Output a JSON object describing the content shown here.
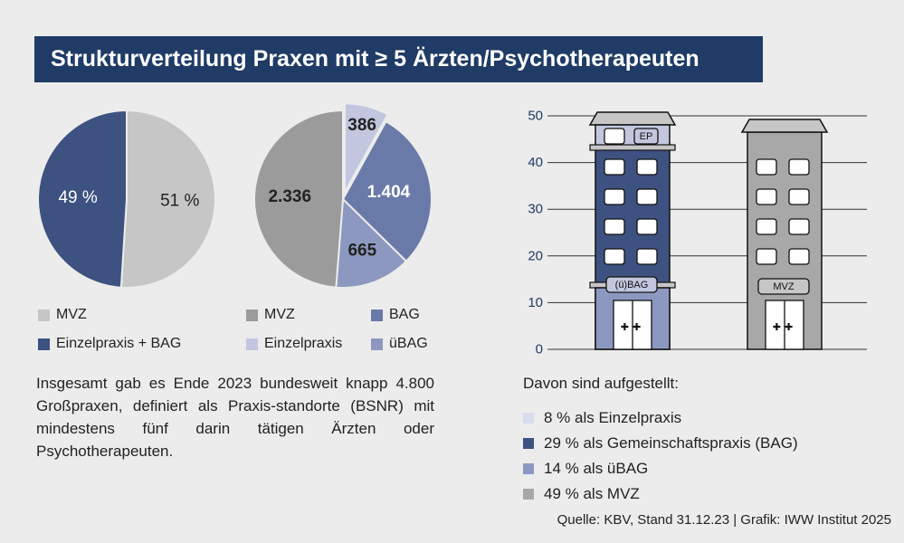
{
  "title": "Strukturverteilung Praxen mit ≥ 5 Ärzten/Psychotherapeuten",
  "colors": {
    "dark_blue": "#3d5280",
    "mid_blue": "#6a7aa8",
    "light_blue": "#8d98c1",
    "pale_blue": "#c2c7df",
    "light_gray": "#c6c6c6",
    "mid_gray": "#9b9b9b",
    "title_bg": "#1f3b66"
  },
  "chart_data": [
    {
      "type": "pie",
      "slices": [
        {
          "label": "MVZ",
          "value": 51,
          "display": "51 %",
          "color": "#c6c6c6"
        },
        {
          "label": "Einzelpraxis + BAG",
          "value": 49,
          "display": "49 %",
          "color": "#3d5280"
        }
      ]
    },
    {
      "type": "pie",
      "slices": [
        {
          "label": "Einzelpraxis",
          "value": 386,
          "display": "386",
          "color": "#c2c7df"
        },
        {
          "label": "BAG",
          "value": 1404,
          "display": "1.404",
          "color": "#6a7aa8"
        },
        {
          "label": "üBAG",
          "value": 665,
          "display": "665",
          "color": "#8d98c1"
        },
        {
          "label": "MVZ",
          "value": 2336,
          "display": "2.336",
          "color": "#9b9b9b"
        }
      ]
    },
    {
      "type": "bar",
      "categories": [
        "(ü)BAG",
        "MVZ"
      ],
      "ylim": [
        0,
        50
      ],
      "yticks": [
        "0",
        "10",
        "20",
        "30",
        "40",
        "50"
      ],
      "grid": true
    }
  ],
  "legend1": [
    {
      "label": "MVZ",
      "color": "#c6c6c6"
    },
    {
      "label": "Einzelpraxis + BAG",
      "color": "#3d5280"
    }
  ],
  "legend2": [
    {
      "label": "MVZ",
      "color": "#9b9b9b"
    },
    {
      "label": "BAG",
      "color": "#6a7aa8"
    },
    {
      "label": "Einzelpraxis",
      "color": "#c2c7df"
    },
    {
      "label": "üBAG",
      "color": "#8d98c1"
    }
  ],
  "buildings": {
    "ep_label": "EP",
    "bag_label": "(ü)BAG",
    "mvz_label": "MVZ",
    "door_symbol": "✚✚"
  },
  "description": "Insgesamt gab es Ende 2023 bundesweit knapp 4.800 Großpraxen, definiert als Praxis-standorte (BSNR) mit mindestens fünf darin tätigen Ärzten oder Psychotherapeuten.",
  "breakdown": {
    "heading": "Davon sind aufgestellt:",
    "items": [
      {
        "text": "8 % als Einzelpraxis",
        "color": "#d9dcea"
      },
      {
        "text": "29 % als Gemeinschaftspraxis (BAG)",
        "color": "#3d5280"
      },
      {
        "text": "14 % als üBAG",
        "color": "#8d98c1"
      },
      {
        "text": "49 % als MVZ",
        "color": "#a8a8a8"
      }
    ]
  },
  "source": "Quelle: KBV, Stand 31.12.23 | Grafik: IWW Institut 2025"
}
